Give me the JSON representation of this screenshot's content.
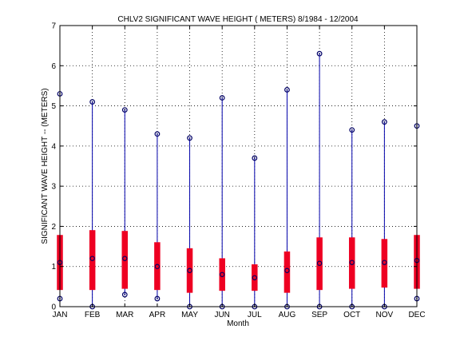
{
  "chart_data": {
    "type": "box",
    "title": "CHLV2  SIGNIFICANT WAVE HEIGHT ( METERS) 8/1984 - 12/2004",
    "xlabel": "Month",
    "ylabel": "SIGNIFICANT WAVE HEIGHT -- (METERS)",
    "ylim": [
      0,
      7
    ],
    "yticks": [
      0,
      1,
      2,
      3,
      4,
      5,
      6,
      7
    ],
    "grid": true,
    "categories": [
      "JAN",
      "FEB",
      "MAR",
      "APR",
      "MAY",
      "JUN",
      "JUL",
      "AUG",
      "SEP",
      "OCT",
      "NOV",
      "DEC"
    ],
    "series": [
      {
        "min": [
          0.2,
          0.0,
          0.3,
          0.2,
          0.0,
          0.0,
          0.0,
          0.0,
          0.0,
          0.0,
          0.0,
          0.2
        ],
        "q1": [
          0.42,
          0.42,
          0.45,
          0.42,
          0.35,
          0.4,
          0.4,
          0.35,
          0.42,
          0.45,
          0.48,
          0.45
        ],
        "median": [
          1.1,
          1.2,
          1.2,
          1.0,
          0.9,
          0.8,
          0.72,
          0.9,
          1.08,
          1.1,
          1.1,
          1.15
        ],
        "q3": [
          1.78,
          1.9,
          1.88,
          1.6,
          1.45,
          1.2,
          1.05,
          1.37,
          1.72,
          1.72,
          1.68,
          1.78
        ],
        "max": [
          5.3,
          5.1,
          4.9,
          4.3,
          4.2,
          5.2,
          3.7,
          5.4,
          6.3,
          4.4,
          4.6,
          4.5
        ]
      }
    ],
    "colors": {
      "whisker": "#0000aa",
      "box": "#ee0022",
      "marker": "#000066",
      "grid": "#000000"
    }
  }
}
